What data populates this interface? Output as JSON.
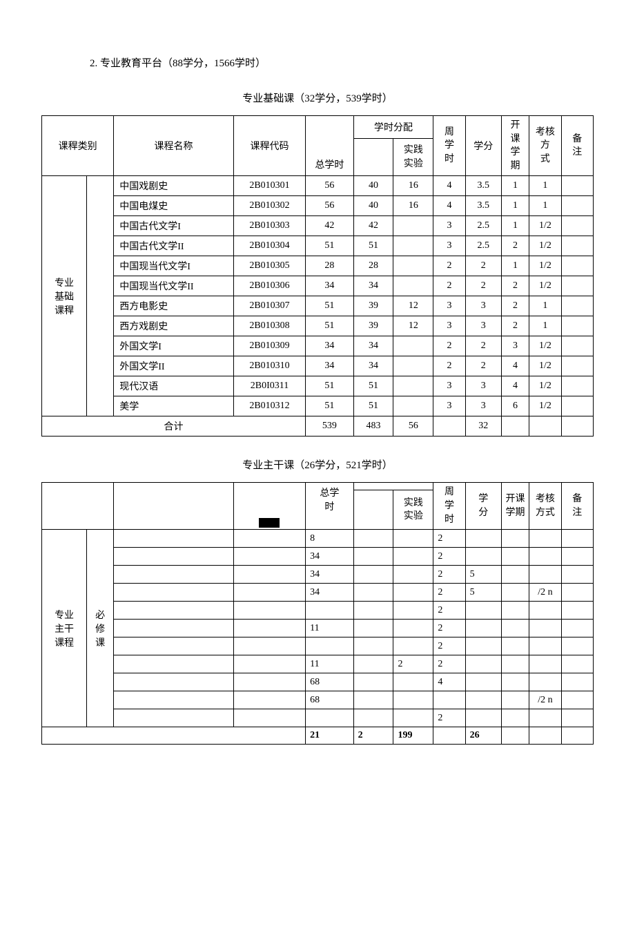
{
  "section_title": "2. 专业教育平台（88学分，1566学时）",
  "table1": {
    "subtitle": "专业基础课（32学分，539学时）",
    "headers": {
      "category": "课稈类别",
      "name": "课程名称",
      "code": "课稈代码",
      "total_hours": "总学时",
      "hours_dist": "学时分配",
      "practice": "实践\n实验",
      "week_hours": "周\n学\n时",
      "credit": "学分",
      "semester": "开\n课\n学\n期",
      "exam": "考核\n方\n式",
      "note": "备\n注"
    },
    "category_label": "专业\n基础\n课稈",
    "rows": [
      {
        "name": "中国戏剧史",
        "code": "2B010301",
        "total": "56",
        "h1": "40",
        "h2": "16",
        "week": "4",
        "credit": "3.5",
        "sem": "1",
        "exam": "1"
      },
      {
        "name": "中国电煤史",
        "code": "2B010302",
        "total": "56",
        "h1": "40",
        "h2": "16",
        "week": "4",
        "credit": "3.5",
        "sem": "1",
        "exam": "1"
      },
      {
        "name": "中国古代文学I",
        "code": "2B010303",
        "total": "42",
        "h1": "42",
        "h2": "",
        "week": "3",
        "credit": "2.5",
        "sem": "1",
        "exam": "1/2"
      },
      {
        "name": "中国古代文学II",
        "code": "2B010304",
        "total": "51",
        "h1": "51",
        "h2": "",
        "week": "3",
        "credit": "2.5",
        "sem": "2",
        "exam": "1/2"
      },
      {
        "name": "中国现当代文学I",
        "code": "2B010305",
        "total": "28",
        "h1": "28",
        "h2": "",
        "week": "2",
        "credit": "2",
        "sem": "1",
        "exam": "1/2"
      },
      {
        "name": "中国现当代文学II",
        "code": "2B010306",
        "total": "34",
        "h1": "34",
        "h2": "",
        "week": "2",
        "credit": "2",
        "sem": "2",
        "exam": "1/2"
      },
      {
        "name": "西方电影史",
        "code": "2B010307",
        "total": "51",
        "h1": "39",
        "h2": "12",
        "week": "3",
        "credit": "3",
        "sem": "2",
        "exam": "1"
      },
      {
        "name": "西方戏剧史",
        "code": "2B010308",
        "total": "51",
        "h1": "39",
        "h2": "12",
        "week": "3",
        "credit": "3",
        "sem": "2",
        "exam": "1"
      },
      {
        "name": "外国文学I",
        "code": "2B010309",
        "total": "34",
        "h1": "34",
        "h2": "",
        "week": "2",
        "credit": "2",
        "sem": "3",
        "exam": "1/2"
      },
      {
        "name": "外国文学II",
        "code": "2B010310",
        "total": "34",
        "h1": "34",
        "h2": "",
        "week": "2",
        "credit": "2",
        "sem": "4",
        "exam": "1/2"
      },
      {
        "name": "现代汉语",
        "code": "2B0I0311",
        "total": "51",
        "h1": "51",
        "h2": "",
        "week": "3",
        "credit": "3",
        "sem": "4",
        "exam": "1/2"
      },
      {
        "name": "美学",
        "code": "2B010312",
        "total": "51",
        "h1": "51",
        "h2": "",
        "week": "3",
        "credit": "3",
        "sem": "6",
        "exam": "1/2"
      }
    ],
    "total_label": "合计",
    "totals": {
      "total": "539",
      "h1": "483",
      "h2": "56",
      "week": "",
      "credit": "32"
    }
  },
  "table2": {
    "subtitle": "专业主干课（26学分，521学时）",
    "headers": {
      "total_hours": "总学\n时",
      "practice": "实践\n实验",
      "week_hours": "周\n学\n时",
      "credit": "学\n分",
      "semester": "开课\n学期",
      "exam": "考核\n方式",
      "note": "备\n注"
    },
    "category_label": "专业\n主干\n课程",
    "type_label": "必\n修\n课",
    "partial_rows": [
      {
        "c4": "8",
        "c5": "",
        "c6": "",
        "c7": "2",
        "c8": "",
        "c9": "",
        "c10": ""
      },
      {
        "c4": "34",
        "c5": "",
        "c6": "",
        "c7": "2",
        "c8": "",
        "c9": "",
        "c10": ""
      },
      {
        "c4": "34",
        "c5": "",
        "c6": "",
        "c7": "2",
        "c8": "5",
        "c9": "",
        "c10": ""
      },
      {
        "c4": "34",
        "c5": "",
        "c6": "",
        "c7": "2",
        "c8": "5",
        "c9": "",
        "c10": "/2 n"
      },
      {
        "c4": "",
        "c5": "",
        "c6": "",
        "c7": "2",
        "c8": "",
        "c9": "",
        "c10": ""
      },
      {
        "c4": "11",
        "c5": "",
        "c6": "",
        "c7": "2",
        "c8": "",
        "c9": "",
        "c10": ""
      },
      {
        "c4": "",
        "c5": "",
        "c6": "",
        "c7": "2",
        "c8": "",
        "c9": "",
        "c10": ""
      },
      {
        "c4": "11",
        "c5": "",
        "c6": "2",
        "c7": "2",
        "c8": "",
        "c9": "",
        "c10": ""
      },
      {
        "c4": "68",
        "c5": "",
        "c6": "",
        "c7": "4",
        "c8": "",
        "c9": "",
        "c10": ""
      },
      {
        "c4": "68",
        "c5": "",
        "c6": "",
        "c7": "",
        "c8": "",
        "c9": "",
        "c10": "/2 n"
      },
      {
        "c4": "",
        "c5": "",
        "c6": "",
        "c7": "2",
        "c8": "",
        "c9": "",
        "c10": ""
      }
    ],
    "totals": {
      "c4": "21",
      "c5": "2",
      "c6": "199",
      "c7": "",
      "c8": "26",
      "c9": "",
      "c10": ""
    }
  }
}
